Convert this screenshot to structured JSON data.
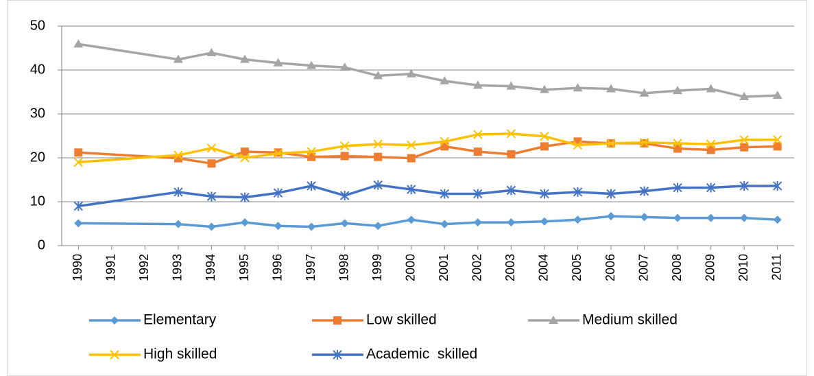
{
  "chart_data": {
    "type": "line",
    "x": [
      1990,
      1993,
      1994,
      1995,
      1996,
      1997,
      1998,
      1999,
      2000,
      2001,
      2002,
      2003,
      2004,
      2005,
      2006,
      2007,
      2008,
      2009,
      2010,
      2011
    ],
    "xlim": [
      1989.5,
      2011.5
    ],
    "xticks": [
      1990,
      1991,
      1992,
      1993,
      1994,
      1995,
      1996,
      1997,
      1998,
      1999,
      2000,
      2001,
      2002,
      2003,
      2004,
      2005,
      2006,
      2007,
      2008,
      2009,
      2010,
      2011
    ],
    "ylim": [
      0,
      50
    ],
    "yticks": [
      0,
      10,
      20,
      30,
      40,
      50
    ],
    "grid": true,
    "legend": "bottom",
    "series": [
      {
        "name": "Elementary",
        "color": "#5b9bd5",
        "marker": "diamond",
        "values": [
          5.1,
          4.9,
          4.3,
          5.3,
          4.5,
          4.3,
          5.1,
          4.5,
          5.9,
          4.9,
          5.3,
          5.3,
          5.5,
          5.9,
          6.7,
          6.5,
          6.3,
          6.3,
          6.3,
          5.9
        ]
      },
      {
        "name": "Low skilled",
        "color": "#ed7d31",
        "marker": "square",
        "values": [
          21.2,
          19.9,
          18.7,
          21.4,
          21.2,
          20.2,
          20.4,
          20.2,
          19.9,
          22.6,
          21.4,
          20.8,
          22.6,
          23.7,
          23.3,
          23.3,
          22.1,
          21.8,
          22.4,
          22.6
        ]
      },
      {
        "name": "Medium skilled",
        "color": "#a5a5a5",
        "marker": "triangle",
        "values": [
          45.9,
          42.4,
          43.9,
          42.4,
          41.6,
          41.0,
          40.6,
          38.7,
          39.1,
          37.5,
          36.5,
          36.3,
          35.5,
          35.9,
          35.7,
          34.7,
          35.3,
          35.7,
          33.9,
          34.2
        ]
      },
      {
        "name": "High skilled",
        "color": "#ffc000",
        "marker": "x",
        "values": [
          19.0,
          20.6,
          22.2,
          20.0,
          21.0,
          21.4,
          22.7,
          23.1,
          22.9,
          23.7,
          25.3,
          25.5,
          24.9,
          22.9,
          23.3,
          23.5,
          23.3,
          23.1,
          24.1,
          24.1
        ]
      },
      {
        "name": "Academic  skilled",
        "color": "#4472c4",
        "marker": "asterisk",
        "values": [
          9.0,
          12.2,
          11.2,
          11.0,
          12.0,
          13.6,
          11.4,
          13.8,
          12.8,
          11.8,
          11.8,
          12.6,
          11.8,
          12.2,
          11.8,
          12.4,
          13.2,
          13.2,
          13.6,
          13.6
        ]
      }
    ]
  }
}
